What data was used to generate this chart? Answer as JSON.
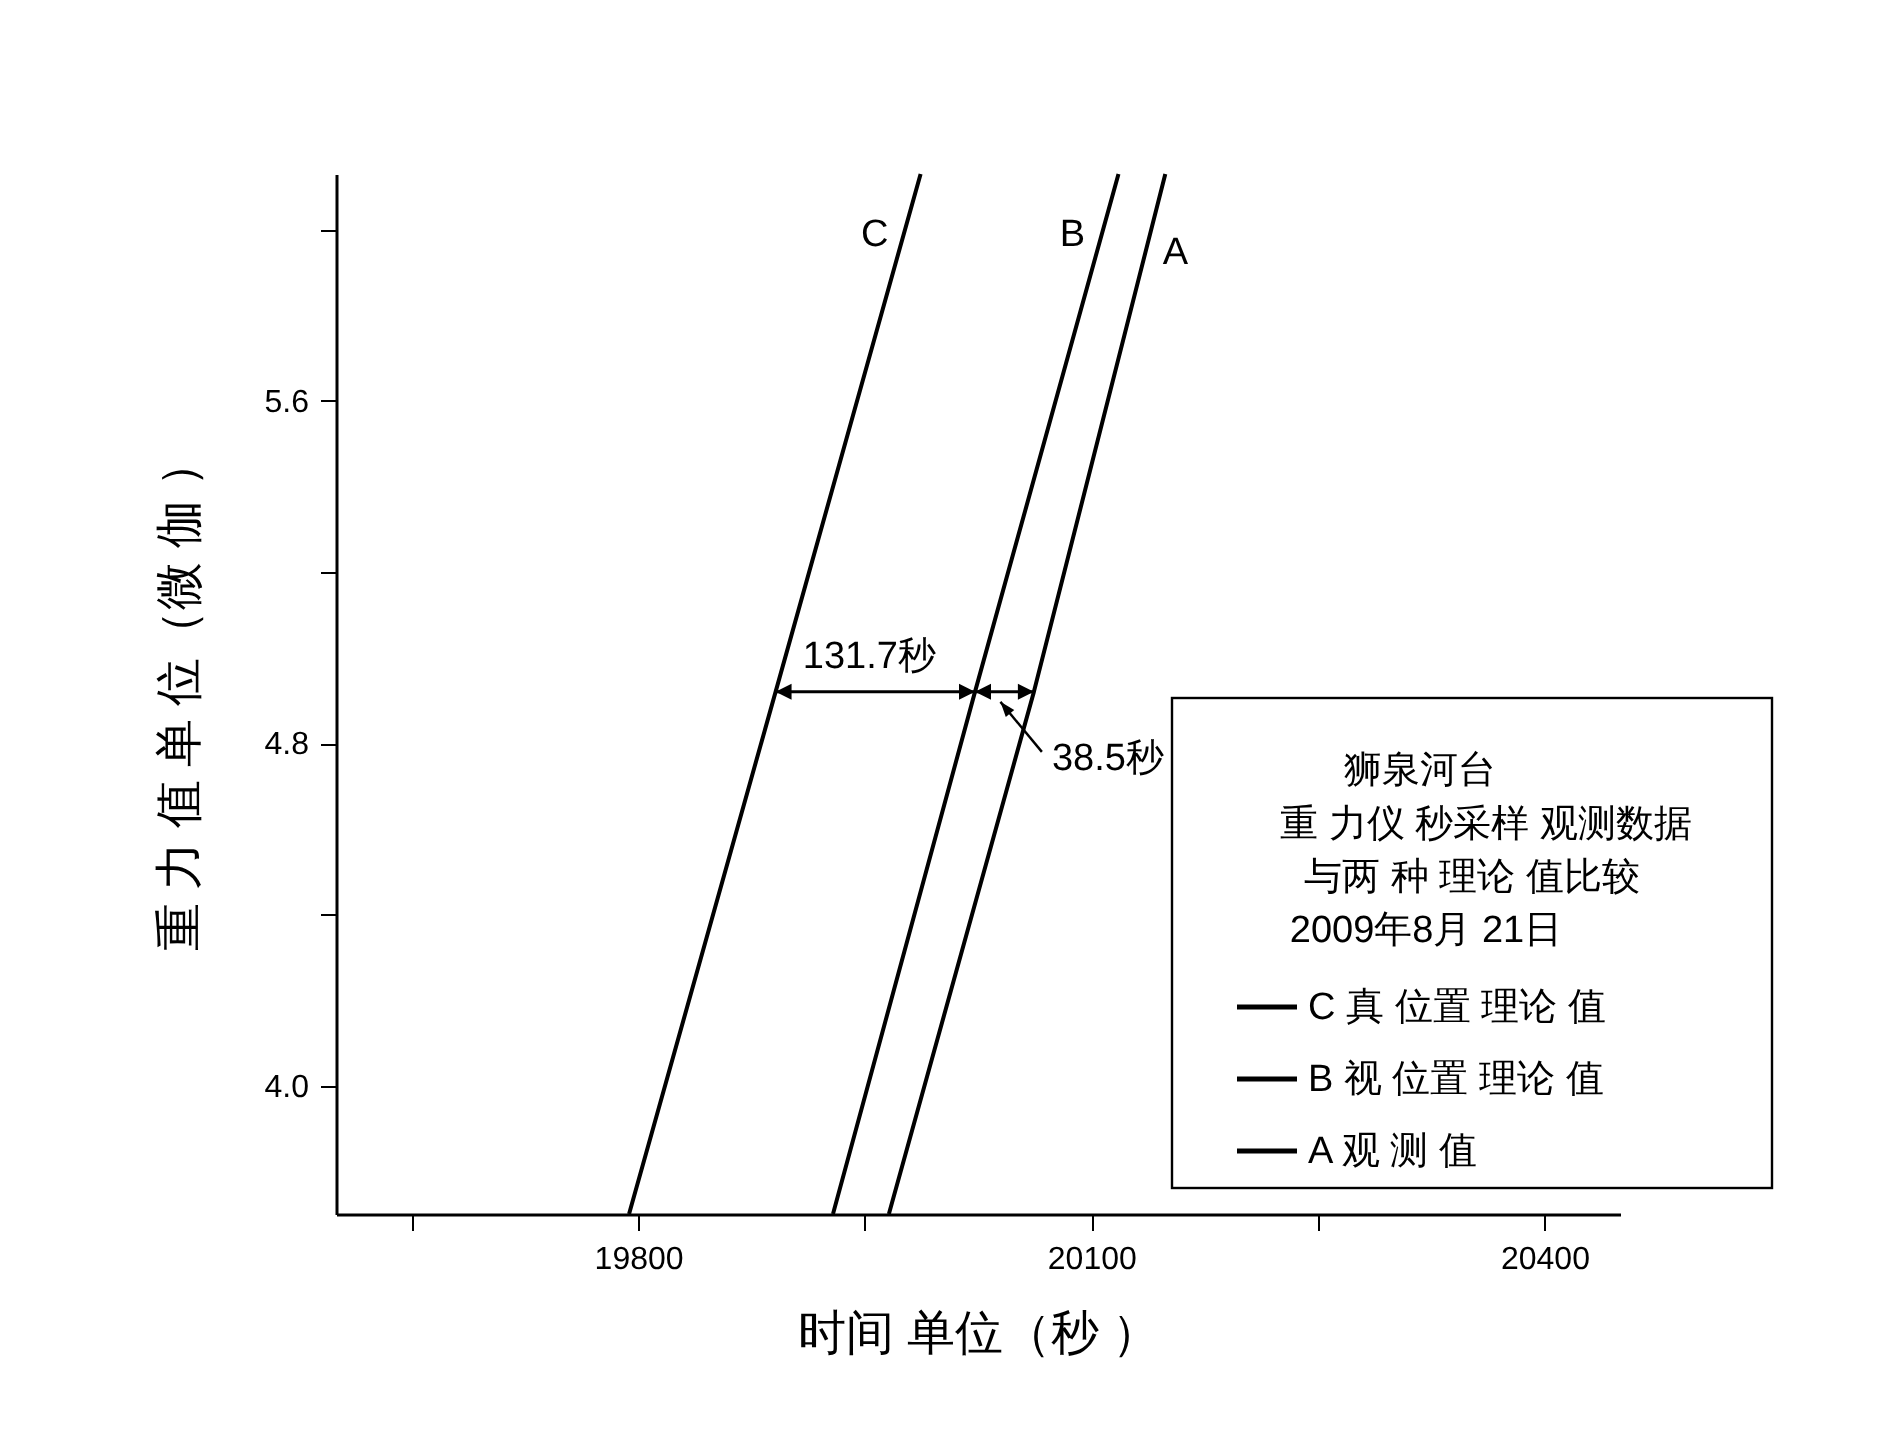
{
  "chart_data": {
    "type": "line",
    "xlabel": "时间 单位（秒 ）",
    "ylabel": "重 力 值 单 位（微 伽 ）",
    "legend_title": "狮泉河台",
    "legend": "bottom right",
    "grid": false,
    "marker": "none",
    "line_style": "solid",
    "xlim": [
      19600,
      20450
    ],
    "ylim": [
      3.7,
      6.13
    ],
    "xticks": [
      {
        "value": 19650,
        "label": null
      },
      19800,
      {
        "value": 19950,
        "label": null
      },
      20100,
      {
        "value": 20250,
        "label": null
      },
      20400
    ],
    "yticks": [
      {
        "value": 4,
        "label": "4.0"
      },
      {
        "value": 4.4,
        "label": null
      },
      {
        "value": 4.8,
        "label": "4.8"
      },
      {
        "value": 5.2,
        "label": null
      },
      {
        "value": 5.6,
        "label": "5.6"
      },
      {
        "value": 6,
        "label": null
      }
    ],
    "series": [
      {
        "name": "C 真  位置 理论 值",
        "color": "#000000",
        "x": [
          19794,
          19891,
          19987
        ],
        "values": [
          3.7,
          4.92,
          6.13
        ]
      },
      {
        "name": "B 视 位置 理论 值",
        "color": "#000000",
        "x": [
          19929,
          20023,
          20118
        ],
        "values": [
          3.7,
          4.92,
          6.13
        ]
      },
      {
        "name": "A 观 测 值",
        "color": "#000000",
        "x": [
          19966,
          20062,
          20149
        ],
        "values": [
          3.7,
          4.92,
          6.13
        ]
      }
    ],
    "annotations": [
      "C",
      "B",
      "A",
      "131.7秒",
      "38.5秒",
      "重 力仪 秒采样 观测数据",
      "与两 种 理论 值比较",
      "2009年8月 21日"
    ]
  }
}
